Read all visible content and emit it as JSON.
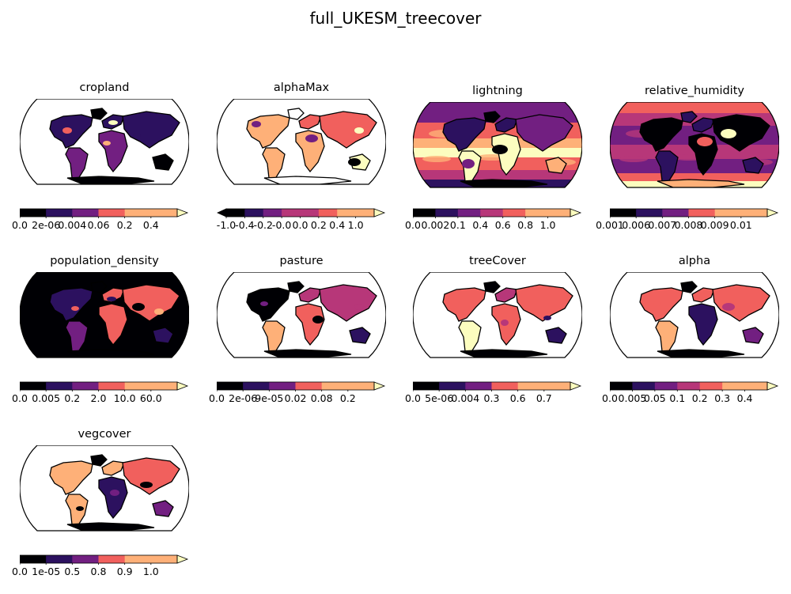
{
  "figure": {
    "title": "full_UKESM_treecover"
  },
  "colors": {
    "palette": [
      "#000004",
      "#2c115f",
      "#721f81",
      "#b73779",
      "#f1605d",
      "#feb078",
      "#fcfdbf"
    ],
    "ocean": "#ffffff",
    "outline": "#000000"
  },
  "chart_data": [
    {
      "type": "heatmap",
      "title": "cropland",
      "map_projection": "robinson",
      "colorbar": {
        "orientation": "horizontal",
        "extend": "max",
        "ticks": [
          "0.0",
          "2e-06",
          "0.004",
          "0.06",
          "0.2",
          "0.4"
        ]
      }
    },
    {
      "type": "heatmap",
      "title": "alphaMax",
      "map_projection": "robinson",
      "colorbar": {
        "orientation": "horizontal",
        "extend": "both",
        "ticks": [
          "-1.0",
          "-0.4",
          "-0.2",
          "-0.0",
          "0.0",
          "0.2",
          "0.4",
          "1.0"
        ]
      }
    },
    {
      "type": "heatmap",
      "title": "lightning",
      "map_projection": "robinson",
      "colorbar": {
        "orientation": "horizontal",
        "extend": "max",
        "ticks": [
          "0.0",
          "0.002",
          "0.1",
          "0.4",
          "0.6",
          "0.8",
          "1.0"
        ]
      }
    },
    {
      "type": "heatmap",
      "title": "relative_humidity",
      "map_projection": "robinson",
      "colorbar": {
        "orientation": "horizontal",
        "extend": "max",
        "ticks": [
          "0.001",
          "0.006",
          "0.007",
          "0.008",
          "0.009",
          "0.01"
        ]
      }
    },
    {
      "type": "heatmap",
      "title": "population_density",
      "map_projection": "robinson",
      "colorbar": {
        "orientation": "horizontal",
        "extend": "max",
        "ticks": [
          "0.0",
          "0.005",
          "0.2",
          "2.0",
          "10.0",
          "60.0"
        ]
      }
    },
    {
      "type": "heatmap",
      "title": "pasture",
      "map_projection": "robinson",
      "colorbar": {
        "orientation": "horizontal",
        "extend": "max",
        "ticks": [
          "0.0",
          "2e-06",
          "9e-05",
          "0.02",
          "0.08",
          "0.2"
        ]
      }
    },
    {
      "type": "heatmap",
      "title": "treeCover",
      "map_projection": "robinson",
      "colorbar": {
        "orientation": "horizontal",
        "extend": "max",
        "ticks": [
          "0.0",
          "5e-06",
          "0.004",
          "0.3",
          "0.6",
          "0.7"
        ]
      }
    },
    {
      "type": "heatmap",
      "title": "alpha",
      "map_projection": "robinson",
      "colorbar": {
        "orientation": "horizontal",
        "extend": "max",
        "ticks": [
          "0.0",
          "0.005",
          "0.05",
          "0.1",
          "0.2",
          "0.3",
          "0.4"
        ]
      }
    },
    {
      "type": "heatmap",
      "title": "vegcover",
      "map_projection": "robinson",
      "colorbar": {
        "orientation": "horizontal",
        "extend": "max",
        "ticks": [
          "0.0",
          "1e-05",
          "0.5",
          "0.8",
          "0.9",
          "1.0"
        ]
      }
    }
  ]
}
